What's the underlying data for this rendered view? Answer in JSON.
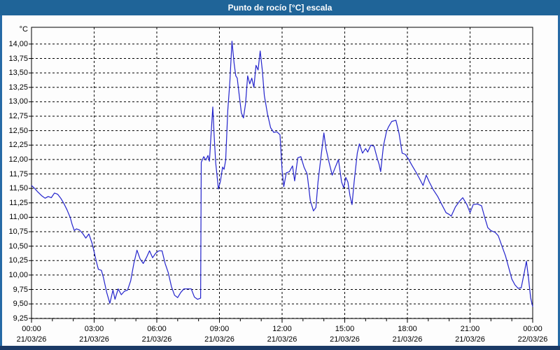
{
  "window": {
    "title": "Punto de rocío [°C] escala"
  },
  "colors": {
    "titlebar": "#1f6498",
    "side_border": "#266aa6",
    "bottom_border": "#1b3a66",
    "line": "#2323cc",
    "grid": "#000000",
    "plot_border": "#000000",
    "label": "#000000",
    "background": "#ffffff"
  },
  "chart_data": {
    "type": "line",
    "title": "Punto de rocío [°C] escala",
    "y_unit_label": "°C",
    "xlabel": "",
    "ylabel": "°C",
    "grid": true,
    "legend": "none",
    "xlim_hours": [
      0,
      24
    ],
    "ylim": [
      9.25,
      14.29
    ],
    "y_ticks": [
      {
        "v": 14.0,
        "label": "14,00"
      },
      {
        "v": 13.75,
        "label": "13,75"
      },
      {
        "v": 13.5,
        "label": "13,50"
      },
      {
        "v": 13.25,
        "label": "13,25"
      },
      {
        "v": 13.0,
        "label": "13,00"
      },
      {
        "v": 12.75,
        "label": "12,75"
      },
      {
        "v": 12.5,
        "label": "12,50"
      },
      {
        "v": 12.25,
        "label": "12,25"
      },
      {
        "v": 12.0,
        "label": "12,00"
      },
      {
        "v": 11.75,
        "label": "11,75"
      },
      {
        "v": 11.5,
        "label": "11,50"
      },
      {
        "v": 11.25,
        "label": "11,25"
      },
      {
        "v": 11.0,
        "label": "11,00"
      },
      {
        "v": 10.75,
        "label": "10,75"
      },
      {
        "v": 10.5,
        "label": "10,50"
      },
      {
        "v": 10.25,
        "label": "10,25"
      },
      {
        "v": 10.0,
        "label": "10,00"
      },
      {
        "v": 9.75,
        "label": "9,75"
      },
      {
        "v": 9.5,
        "label": "9,50"
      },
      {
        "v": 9.25,
        "label": "9,25"
      }
    ],
    "x_ticks": [
      {
        "t": 0,
        "time": "00:00",
        "date": "21/03/26"
      },
      {
        "t": 3,
        "time": "03:00",
        "date": "21/03/26"
      },
      {
        "t": 6,
        "time": "06:00",
        "date": "21/03/26"
      },
      {
        "t": 9,
        "time": "09:00",
        "date": "21/03/26"
      },
      {
        "t": 12,
        "time": "12:00",
        "date": "21/03/26"
      },
      {
        "t": 15,
        "time": "15:00",
        "date": "21/03/26"
      },
      {
        "t": 18,
        "time": "18:00",
        "date": "21/03/26"
      },
      {
        "t": 21,
        "time": "21:00",
        "date": "21/03/26"
      },
      {
        "t": 24,
        "time": "00:00",
        "date": "22/03/26"
      }
    ],
    "series": [
      {
        "name": "Punto de rocío",
        "color": "#2323cc",
        "points": [
          [
            0,
            11.55
          ],
          [
            0.15,
            11.5
          ],
          [
            0.3,
            11.44
          ],
          [
            0.5,
            11.37
          ],
          [
            0.65,
            11.33
          ],
          [
            0.8,
            11.36
          ],
          [
            0.95,
            11.34
          ],
          [
            1.1,
            11.42
          ],
          [
            1.25,
            11.4
          ],
          [
            1.4,
            11.33
          ],
          [
            1.55,
            11.24
          ],
          [
            1.7,
            11.13
          ],
          [
            1.85,
            11.0
          ],
          [
            1.95,
            10.87
          ],
          [
            2.05,
            10.77
          ],
          [
            2.15,
            10.8
          ],
          [
            2.3,
            10.78
          ],
          [
            2.45,
            10.72
          ],
          [
            2.6,
            10.64
          ],
          [
            2.75,
            10.71
          ],
          [
            2.9,
            10.55
          ],
          [
            3.0,
            10.4
          ],
          [
            3.1,
            10.24
          ],
          [
            3.2,
            10.1
          ],
          [
            3.35,
            10.08
          ],
          [
            3.45,
            9.95
          ],
          [
            3.6,
            9.7
          ],
          [
            3.75,
            9.51
          ],
          [
            3.9,
            9.74
          ],
          [
            4.0,
            9.58
          ],
          [
            4.15,
            9.76
          ],
          [
            4.3,
            9.66
          ],
          [
            4.45,
            9.72
          ],
          [
            4.6,
            9.74
          ],
          [
            4.75,
            9.9
          ],
          [
            4.9,
            10.2
          ],
          [
            5.05,
            10.43
          ],
          [
            5.2,
            10.28
          ],
          [
            5.35,
            10.2
          ],
          [
            5.5,
            10.3
          ],
          [
            5.65,
            10.42
          ],
          [
            5.8,
            10.3
          ],
          [
            5.95,
            10.38
          ],
          [
            6.1,
            10.42
          ],
          [
            6.25,
            10.42
          ],
          [
            6.4,
            10.2
          ],
          [
            6.55,
            10.04
          ],
          [
            6.7,
            9.8
          ],
          [
            6.85,
            9.65
          ],
          [
            7.0,
            9.61
          ],
          [
            7.15,
            9.7
          ],
          [
            7.3,
            9.76
          ],
          [
            7.5,
            9.76
          ],
          [
            7.65,
            9.76
          ],
          [
            7.8,
            9.62
          ],
          [
            7.95,
            9.58
          ],
          [
            8.1,
            9.6
          ],
          [
            8.13,
            11.95
          ],
          [
            8.25,
            12.05
          ],
          [
            8.35,
            11.99
          ],
          [
            8.45,
            12.07
          ],
          [
            8.52,
            11.97
          ],
          [
            8.6,
            12.45
          ],
          [
            8.68,
            12.91
          ],
          [
            8.75,
            12.4
          ],
          [
            8.82,
            11.95
          ],
          [
            8.95,
            11.49
          ],
          [
            9.05,
            11.63
          ],
          [
            9.15,
            11.87
          ],
          [
            9.22,
            11.83
          ],
          [
            9.3,
            11.99
          ],
          [
            9.4,
            12.85
          ],
          [
            9.5,
            13.35
          ],
          [
            9.6,
            14.05
          ],
          [
            9.7,
            13.67
          ],
          [
            9.78,
            13.45
          ],
          [
            9.85,
            13.41
          ],
          [
            9.95,
            13.11
          ],
          [
            10.05,
            12.81
          ],
          [
            10.15,
            12.72
          ],
          [
            10.25,
            12.97
          ],
          [
            10.35,
            13.45
          ],
          [
            10.45,
            13.31
          ],
          [
            10.55,
            13.41
          ],
          [
            10.65,
            13.25
          ],
          [
            10.75,
            13.63
          ],
          [
            10.85,
            13.55
          ],
          [
            10.95,
            13.88
          ],
          [
            11.05,
            13.55
          ],
          [
            11.15,
            13.11
          ],
          [
            11.3,
            12.79
          ],
          [
            11.45,
            12.55
          ],
          [
            11.6,
            12.47
          ],
          [
            11.75,
            12.48
          ],
          [
            11.9,
            12.43
          ],
          [
            12.0,
            11.81
          ],
          [
            12.08,
            11.53
          ],
          [
            12.2,
            11.77
          ],
          [
            12.35,
            11.79
          ],
          [
            12.5,
            11.89
          ],
          [
            12.6,
            11.63
          ],
          [
            12.75,
            12.03
          ],
          [
            12.9,
            12.05
          ],
          [
            13.05,
            11.87
          ],
          [
            13.2,
            11.75
          ],
          [
            13.35,
            11.29
          ],
          [
            13.5,
            11.11
          ],
          [
            13.62,
            11.17
          ],
          [
            13.72,
            11.61
          ],
          [
            13.85,
            12.01
          ],
          [
            14.0,
            12.46
          ],
          [
            14.1,
            12.19
          ],
          [
            14.25,
            11.95
          ],
          [
            14.4,
            11.73
          ],
          [
            14.55,
            11.87
          ],
          [
            14.7,
            12.0
          ],
          [
            14.85,
            11.61
          ],
          [
            14.95,
            11.51
          ],
          [
            15.05,
            11.69
          ],
          [
            15.15,
            11.61
          ],
          [
            15.25,
            11.37
          ],
          [
            15.35,
            11.22
          ],
          [
            15.45,
            11.61
          ],
          [
            15.6,
            12.11
          ],
          [
            15.7,
            12.27
          ],
          [
            15.85,
            12.11
          ],
          [
            16.0,
            12.19
          ],
          [
            16.1,
            12.13
          ],
          [
            16.25,
            12.25
          ],
          [
            16.4,
            12.23
          ],
          [
            16.55,
            12.03
          ],
          [
            16.65,
            11.91
          ],
          [
            16.72,
            11.79
          ],
          [
            16.85,
            12.23
          ],
          [
            17.0,
            12.49
          ],
          [
            17.1,
            12.57
          ],
          [
            17.25,
            12.66
          ],
          [
            17.45,
            12.68
          ],
          [
            17.6,
            12.45
          ],
          [
            17.75,
            12.11
          ],
          [
            17.9,
            12.09
          ],
          [
            18.05,
            12.01
          ],
          [
            18.2,
            11.91
          ],
          [
            18.4,
            11.79
          ],
          [
            18.55,
            11.69
          ],
          [
            18.75,
            11.55
          ],
          [
            18.9,
            11.73
          ],
          [
            19.05,
            11.61
          ],
          [
            19.25,
            11.47
          ],
          [
            19.45,
            11.36
          ],
          [
            19.65,
            11.22
          ],
          [
            19.85,
            11.08
          ],
          [
            20.0,
            11.05
          ],
          [
            20.1,
            11.02
          ],
          [
            20.3,
            11.18
          ],
          [
            20.5,
            11.28
          ],
          [
            20.65,
            11.34
          ],
          [
            20.85,
            11.22
          ],
          [
            21.0,
            11.08
          ],
          [
            21.15,
            11.22
          ],
          [
            21.35,
            11.23
          ],
          [
            21.55,
            11.2
          ],
          [
            21.7,
            11.0
          ],
          [
            21.85,
            10.82
          ],
          [
            22.0,
            10.77
          ],
          [
            22.2,
            10.74
          ],
          [
            22.35,
            10.68
          ],
          [
            22.55,
            10.48
          ],
          [
            22.7,
            10.33
          ],
          [
            22.85,
            10.13
          ],
          [
            23.0,
            9.93
          ],
          [
            23.15,
            9.83
          ],
          [
            23.3,
            9.77
          ],
          [
            23.45,
            9.78
          ],
          [
            23.6,
            10.05
          ],
          [
            23.7,
            10.24
          ],
          [
            23.8,
            9.95
          ],
          [
            23.9,
            9.61
          ],
          [
            24.0,
            9.45
          ]
        ]
      }
    ]
  }
}
